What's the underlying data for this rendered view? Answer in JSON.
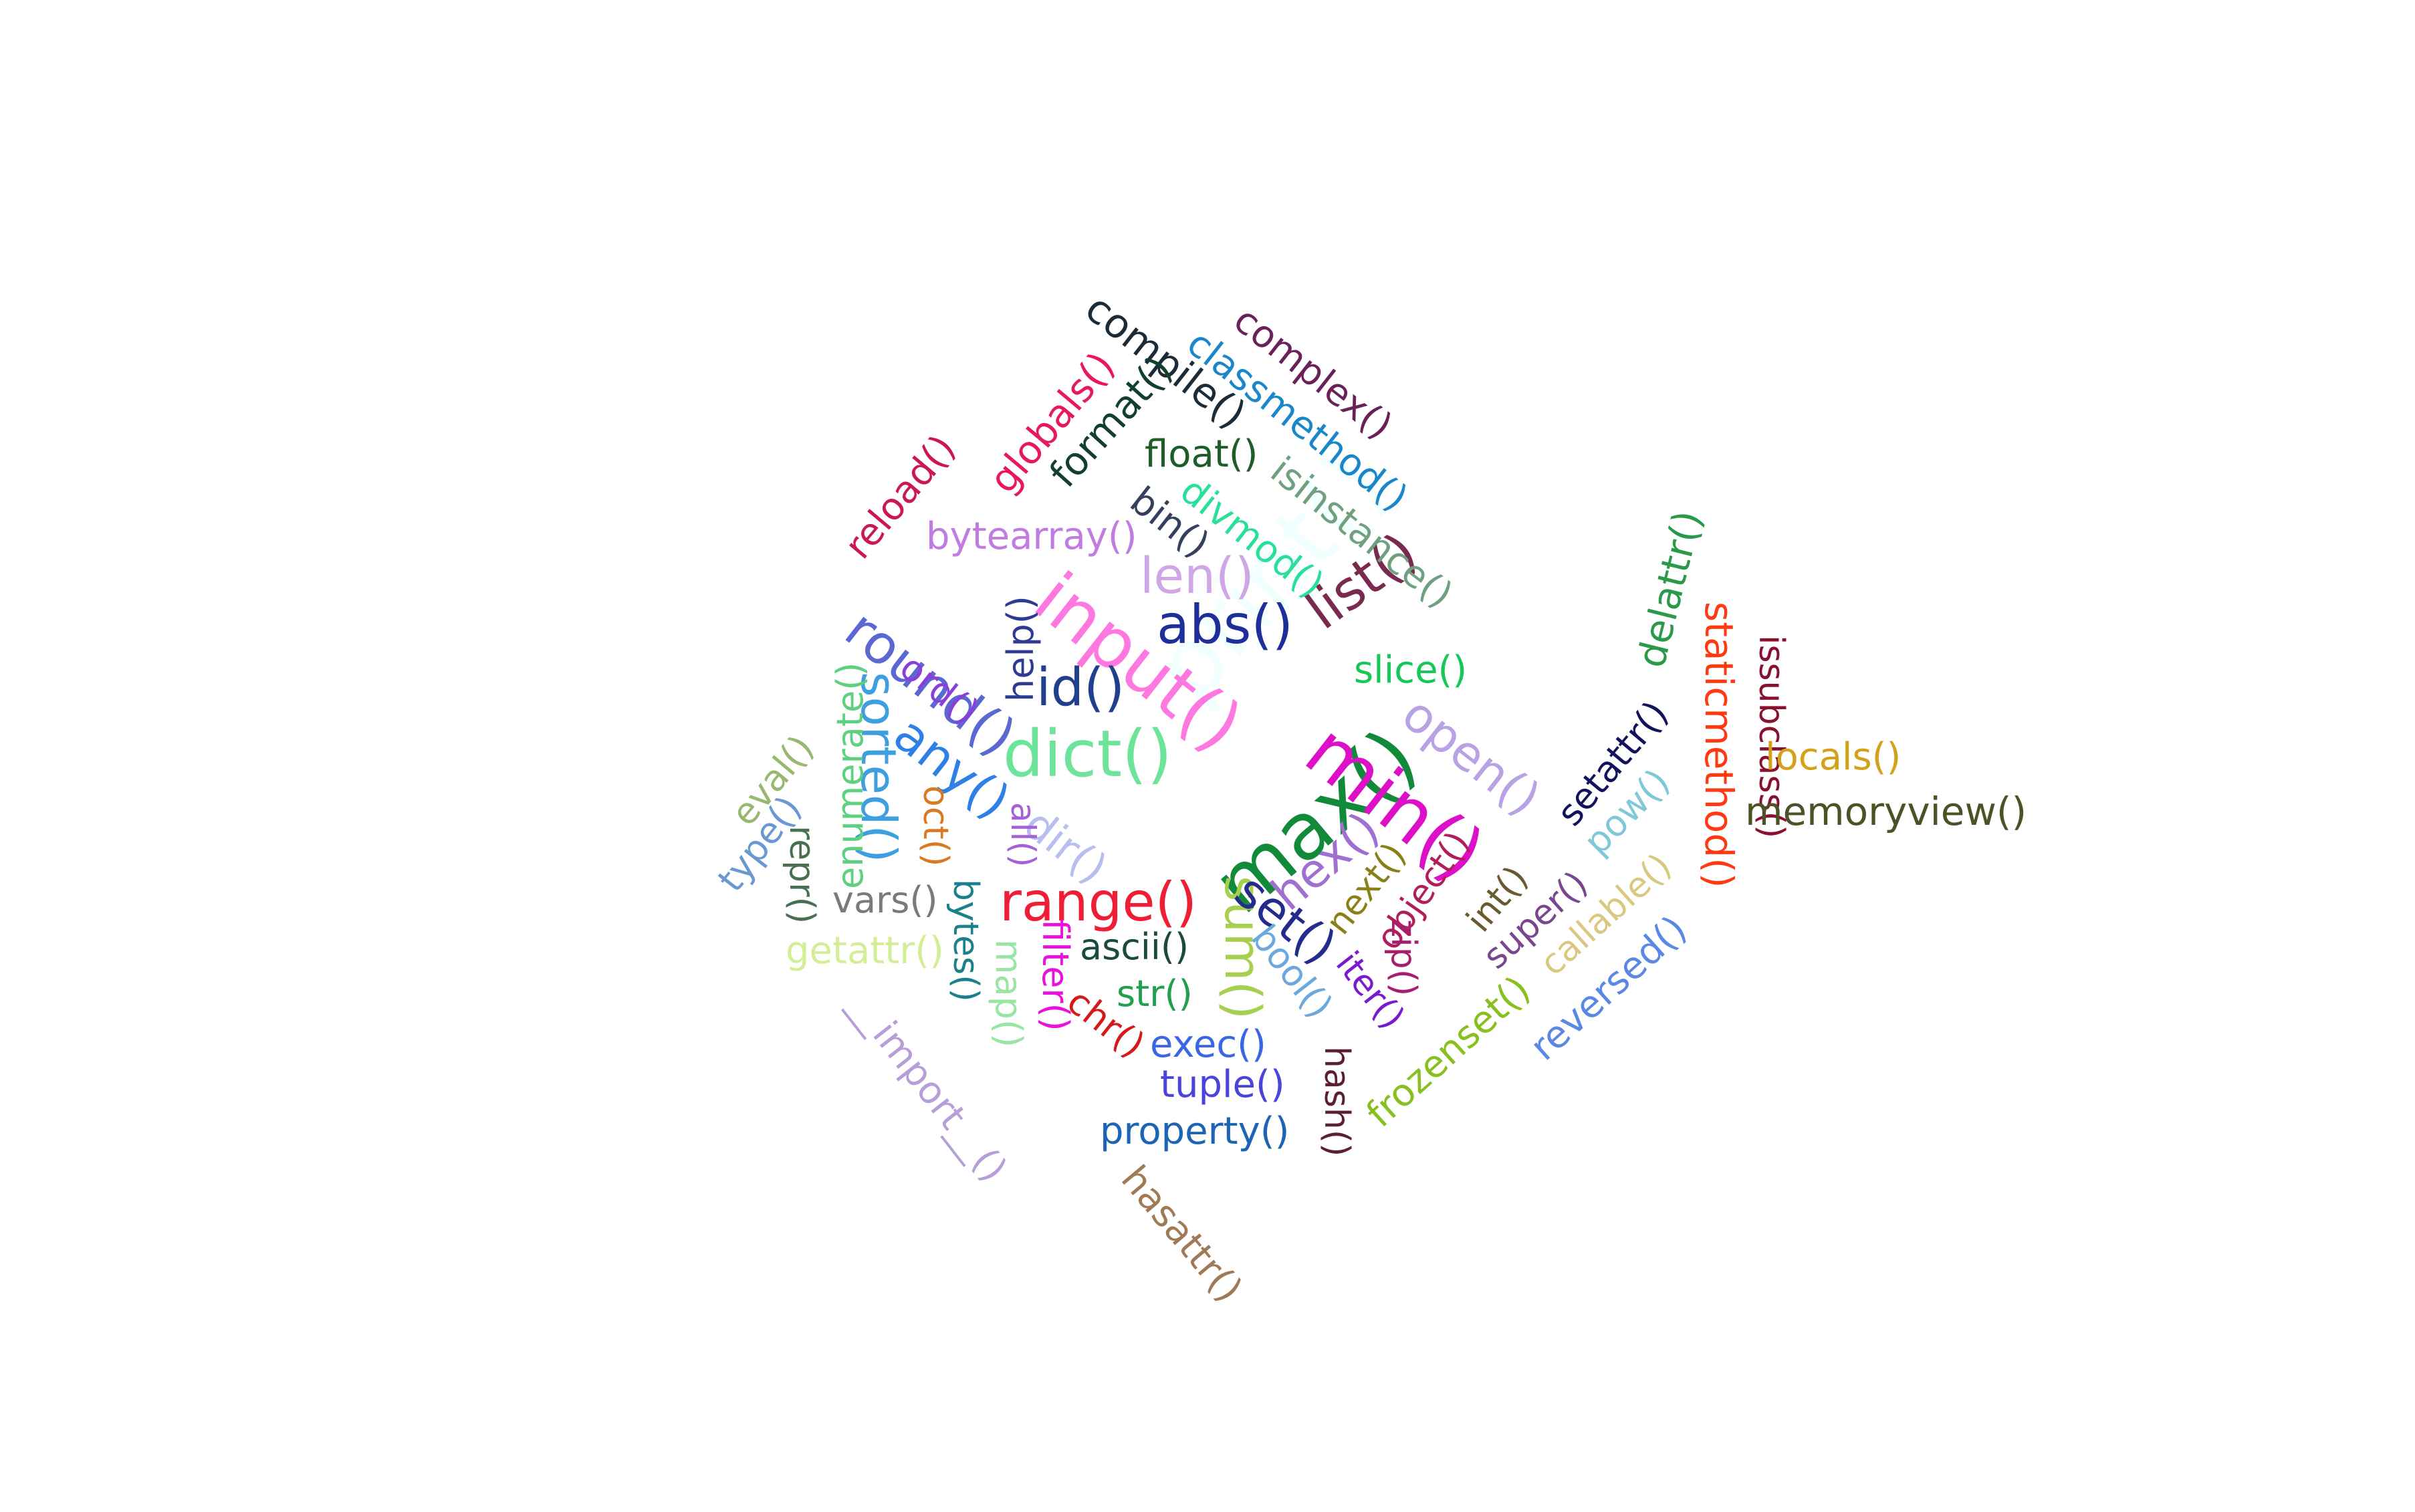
{
  "words": [
    {
      "text": "print()",
      "color": "#F2FFFF",
      "weight": 10
    },
    {
      "text": "max()",
      "color": "#128A3A",
      "weight": 9
    },
    {
      "text": "min()",
      "color": "#DD10C8",
      "weight": 9
    },
    {
      "text": "input()",
      "color": "#FF78E0",
      "weight": 8
    },
    {
      "text": "dict()",
      "color": "#6EE49B",
      "weight": 8
    },
    {
      "text": "range()",
      "color": "#EE1F35",
      "weight": 7
    },
    {
      "text": "round()",
      "color": "#5B68D2",
      "weight": 7
    },
    {
      "text": "sorted()",
      "color": "#3D9EE0",
      "weight": 7
    },
    {
      "text": "id()",
      "color": "#223F8E",
      "weight": 6
    },
    {
      "text": "abs()",
      "color": "#1F2F9A",
      "weight": 6
    },
    {
      "text": "list()",
      "color": "#7A2A4E",
      "weight": 6
    },
    {
      "text": "len()",
      "color": "#CFA6E6",
      "weight": 6
    },
    {
      "text": "any()",
      "color": "#2F80E6",
      "weight": 6
    },
    {
      "text": "sum()",
      "color": "#A8D050",
      "weight": 6
    },
    {
      "text": "set()",
      "color": "#232C8C",
      "weight": 6
    },
    {
      "text": "open()",
      "color": "#B8A2E4",
      "weight": 6
    },
    {
      "text": "hex()",
      "color": "#A070D0",
      "weight": 6
    },
    {
      "text": "dir()",
      "color": "#B8BEF0",
      "weight": 5
    },
    {
      "text": "compile()",
      "color": "#1C2B38",
      "weight": 5
    },
    {
      "text": "complex()",
      "color": "#6A2058",
      "weight": 5
    },
    {
      "text": "classmethod()",
      "color": "#1A87C9",
      "weight": 5
    },
    {
      "text": "globals()",
      "color": "#E8185C",
      "weight": 5
    },
    {
      "text": "format()",
      "color": "#12402C",
      "weight": 5
    },
    {
      "text": "float()",
      "color": "#1E5C2A",
      "weight": 5
    },
    {
      "text": "isinstance()",
      "color": "#6FA080",
      "weight": 5
    },
    {
      "text": "reload()",
      "color": "#CC1850",
      "weight": 5
    },
    {
      "text": "bin()",
      "color": "#35405C",
      "weight": 5
    },
    {
      "text": "divmod()",
      "color": "#28E09A",
      "weight": 5
    },
    {
      "text": "bytearray()",
      "color": "#C07CE0",
      "weight": 5
    },
    {
      "text": "slice()",
      "color": "#15C858",
      "weight": 5
    },
    {
      "text": "delattr()",
      "color": "#2A9A4A",
      "weight": 5
    },
    {
      "text": "staticmethod()",
      "color": "#FF3A12",
      "weight": 5
    },
    {
      "text": "issubclass()",
      "color": "#8A1030",
      "weight": 5
    },
    {
      "text": "locals()",
      "color": "#D4A21A",
      "weight": 5
    },
    {
      "text": "memoryview()",
      "color": "#4A5226",
      "weight": 5
    },
    {
      "text": "setattr()",
      "color": "#13135C",
      "weight": 5
    },
    {
      "text": "pow()",
      "color": "#80C8D8",
      "weight": 5
    },
    {
      "text": "ord()",
      "color": "#8A40D8",
      "weight": 5
    },
    {
      "text": "help()",
      "color": "#2E3A94",
      "weight": 5
    },
    {
      "text": "enumerate()",
      "color": "#5ED080",
      "weight": 5
    },
    {
      "text": "eval()",
      "color": "#98B870",
      "weight": 5
    },
    {
      "text": "type()",
      "color": "#6A98D0",
      "weight": 5
    },
    {
      "text": "repr()",
      "color": "#4A6E52",
      "weight": 5
    },
    {
      "text": "oct()",
      "color": "#D87A22",
      "weight": 5
    },
    {
      "text": "all()",
      "color": "#A460D8",
      "weight": 5
    },
    {
      "text": "vars()",
      "color": "#7A7A7A",
      "weight": 5
    },
    {
      "text": "getattr()",
      "color": "#D4EE98",
      "weight": 5
    },
    {
      "text": "bytes()",
      "color": "#1A808A",
      "weight": 5
    },
    {
      "text": "map()",
      "color": "#9AE4A4",
      "weight": 5
    },
    {
      "text": "filter()",
      "color": "#E812DC",
      "weight": 5
    },
    {
      "text": "ascii()",
      "color": "#1A4A40",
      "weight": 5
    },
    {
      "text": "str()",
      "color": "#20A050",
      "weight": 5
    },
    {
      "text": "chr()",
      "color": "#D41A1A",
      "weight": 5
    },
    {
      "text": "exec()",
      "color": "#3A68E4",
      "weight": 5
    },
    {
      "text": "tuple()",
      "color": "#4A44DC",
      "weight": 5
    },
    {
      "text": "property()",
      "color": "#1E64B4",
      "weight": 5
    },
    {
      "text": "hash()",
      "color": "#5A1E36",
      "weight": 5
    },
    {
      "text": "bool()",
      "color": "#6AA8DE",
      "weight": 5
    },
    {
      "text": "iter()",
      "color": "#7A1AD0",
      "weight": 5
    },
    {
      "text": "next()",
      "color": "#8A8018",
      "weight": 5
    },
    {
      "text": "object()",
      "color": "#B01E5C",
      "weight": 5
    },
    {
      "text": "zip()",
      "color": "#A81E6E",
      "weight": 5
    },
    {
      "text": "int()",
      "color": "#6A5A30",
      "weight": 5
    },
    {
      "text": "super()",
      "color": "#7A4690",
      "weight": 5
    },
    {
      "text": "callable()",
      "color": "#D8C880",
      "weight": 5
    },
    {
      "text": "frozenset()",
      "color": "#88C020",
      "weight": 5
    },
    {
      "text": "reversed()",
      "color": "#5A88E4",
      "weight": 5
    },
    {
      "text": "__import__()",
      "color": "#B89ED8",
      "weight": 5
    },
    {
      "text": "hasattr()",
      "color": "#A07A56",
      "weight": 5
    }
  ]
}
